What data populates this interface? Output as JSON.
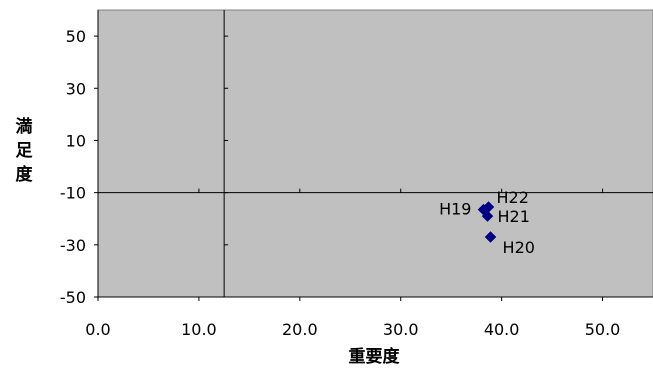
{
  "chart_data": {
    "type": "scatter",
    "title": "",
    "xlabel": "重要度",
    "ylabel": "満足度",
    "xlim": [
      0,
      55
    ],
    "ylim": [
      -50,
      60
    ],
    "xticks": [
      "0.0",
      "10.0",
      "20.0",
      "30.0",
      "40.0",
      "50.0"
    ],
    "yticks": [
      "50",
      "30",
      "10",
      "-10",
      "-30",
      "-50"
    ],
    "reference_lines": {
      "x": 12.5,
      "y": -10
    },
    "grid": false,
    "plot_background": "#c0c0c0",
    "series": [
      {
        "color": "#000080",
        "marker": "diamond",
        "points": [
          {
            "label": "H19",
            "x": 38.2,
            "y": -16.5
          },
          {
            "label": "H20",
            "x": 38.9,
            "y": -27.0
          },
          {
            "label": "H21",
            "x": 38.6,
            "y": -19.0
          },
          {
            "label": "H22",
            "x": 38.7,
            "y": -15.5
          }
        ]
      }
    ]
  }
}
